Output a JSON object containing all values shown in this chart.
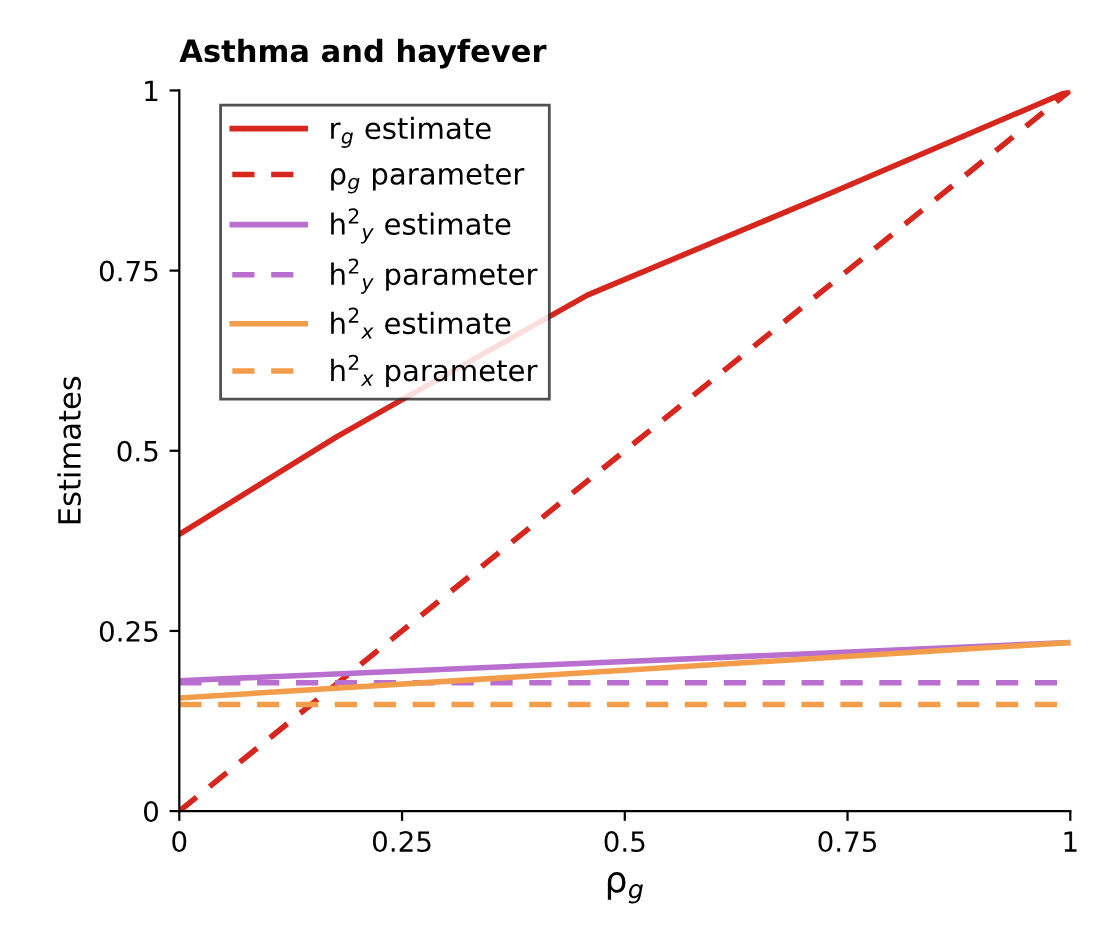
{
  "chart_data": {
    "type": "line",
    "title": "Asthma and hayfever",
    "xlabel": "ρ$_{g}$",
    "ylabel": "Estimates",
    "xlim": [
      0,
      1
    ],
    "ylim": [
      0,
      1
    ],
    "xticks": [
      0,
      0.25,
      0.5,
      0.75,
      1
    ],
    "yticks": [
      0,
      0.25,
      0.5,
      0.75,
      1
    ],
    "grid": false,
    "legend": "top left",
    "marker": "none",
    "series": [
      {
        "name": "r$_{g}$ estimate",
        "color": "#d7261e",
        "line_style": "solid",
        "x": [
          0,
          0.176,
          0.25,
          0.458,
          0.728,
          1
        ],
        "values": [
          0.384,
          0.519,
          0.571,
          0.716,
          0.856,
          1
        ]
      },
      {
        "name": "ρ$_{g}$ parameter",
        "color": "#d7261e",
        "line_style": "dashed",
        "x": [
          0,
          1
        ],
        "values": [
          0,
          1
        ]
      },
      {
        "name": "h$^{2}$$_{y}$ estimate",
        "color": "#b86fd0",
        "line_style": "solid",
        "x": [
          0,
          1
        ],
        "values": [
          0.181,
          0.234
        ]
      },
      {
        "name": "h$^{2}$$_{y}$ parameter",
        "color": "#b86fd0",
        "line_style": "dashed",
        "x": [
          0,
          1
        ],
        "values": [
          0.178,
          0.178
        ]
      },
      {
        "name": "h$^{2}$$_{x}$ estimate",
        "color": "#f39c4a",
        "line_style": "solid",
        "x": [
          0,
          1
        ],
        "values": [
          0.157,
          0.234
        ]
      },
      {
        "name": "h$^{2}$$_{x}$ parameter",
        "color": "#f39c4a",
        "line_style": "dashed",
        "x": [
          0,
          1
        ],
        "values": [
          0.148,
          0.148
        ]
      }
    ]
  }
}
